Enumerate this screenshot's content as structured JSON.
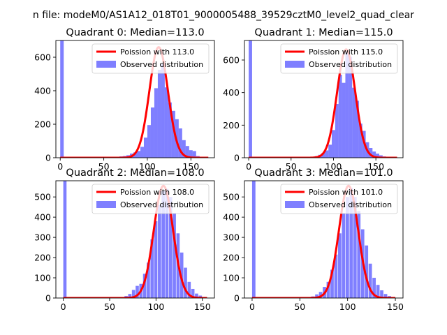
{
  "figure_title": "n file: modeM0/AS1A12_018T01_9000005488_39529cztM0_level2_quad_clear",
  "colors": {
    "observed": "#0000ff",
    "poisson": "#ff0000",
    "background": "#ffffff",
    "axis": "#000000"
  },
  "chart_data": [
    {
      "type": "bar",
      "title": "Quadrant 0: Median=113.0",
      "xlim": [
        -5,
        177
      ],
      "ylim": [
        0,
        700
      ],
      "xticks": [
        0,
        50,
        100,
        150
      ],
      "yticks": [
        0,
        200,
        400,
        600
      ],
      "bin_width": 4,
      "legend_position": "top-right",
      "legend": [
        "Poission with 113.0",
        "Observed distribution"
      ],
      "bins": [
        {
          "x": 0,
          "y": 700
        },
        {
          "x": 12,
          "y": 2
        },
        {
          "x": 28,
          "y": 3
        },
        {
          "x": 48,
          "y": 2
        },
        {
          "x": 60,
          "y": 4
        },
        {
          "x": 68,
          "y": 8
        },
        {
          "x": 72,
          "y": 10
        },
        {
          "x": 76,
          "y": 15
        },
        {
          "x": 80,
          "y": 25
        },
        {
          "x": 84,
          "y": 32
        },
        {
          "x": 88,
          "y": 40
        },
        {
          "x": 92,
          "y": 65
        },
        {
          "x": 96,
          "y": 120
        },
        {
          "x": 100,
          "y": 195
        },
        {
          "x": 104,
          "y": 300
        },
        {
          "x": 108,
          "y": 415
        },
        {
          "x": 112,
          "y": 525
        },
        {
          "x": 116,
          "y": 560
        },
        {
          "x": 120,
          "y": 420
        },
        {
          "x": 124,
          "y": 330
        },
        {
          "x": 128,
          "y": 280
        },
        {
          "x": 132,
          "y": 230
        },
        {
          "x": 136,
          "y": 175
        },
        {
          "x": 140,
          "y": 105
        },
        {
          "x": 144,
          "y": 70
        },
        {
          "x": 148,
          "y": 45
        },
        {
          "x": 152,
          "y": 40
        },
        {
          "x": 156,
          "y": 10
        },
        {
          "x": 160,
          "y": 5
        },
        {
          "x": 164,
          "y": 3
        }
      ],
      "poisson": {
        "name": "Poission with 113.0",
        "mean": 113.0,
        "peak": 660,
        "x_range": [
          0,
          170
        ]
      }
    },
    {
      "type": "bar",
      "title": "Quadrant 1: Median=115.0",
      "xlim": [
        -5,
        182
      ],
      "ylim": [
        0,
        720
      ],
      "xticks": [
        0,
        50,
        100,
        150
      ],
      "yticks": [
        0,
        200,
        400,
        600
      ],
      "bin_width": 4,
      "legend_position": "top-right",
      "legend": [
        "Poission with 115.0",
        "Observed distribution"
      ],
      "bins": [
        {
          "x": 0,
          "y": 720
        },
        {
          "x": 70,
          "y": 4
        },
        {
          "x": 74,
          "y": 6
        },
        {
          "x": 78,
          "y": 10
        },
        {
          "x": 82,
          "y": 18
        },
        {
          "x": 86,
          "y": 30
        },
        {
          "x": 90,
          "y": 45
        },
        {
          "x": 94,
          "y": 80
        },
        {
          "x": 98,
          "y": 170
        },
        {
          "x": 102,
          "y": 330
        },
        {
          "x": 106,
          "y": 510
        },
        {
          "x": 110,
          "y": 460
        },
        {
          "x": 114,
          "y": 650
        },
        {
          "x": 118,
          "y": 620
        },
        {
          "x": 122,
          "y": 430
        },
        {
          "x": 126,
          "y": 350
        },
        {
          "x": 130,
          "y": 210
        },
        {
          "x": 134,
          "y": 165
        },
        {
          "x": 138,
          "y": 95
        },
        {
          "x": 142,
          "y": 60
        },
        {
          "x": 146,
          "y": 38
        },
        {
          "x": 150,
          "y": 25
        },
        {
          "x": 154,
          "y": 15
        },
        {
          "x": 158,
          "y": 8
        },
        {
          "x": 162,
          "y": 4
        }
      ],
      "poisson": {
        "name": "Poission with 115.0",
        "mean": 115.0,
        "peak": 665,
        "x_range": [
          0,
          175
        ]
      }
    },
    {
      "type": "bar",
      "title": "Quadrant 2: Median=108.0",
      "xlim": [
        -8,
        163
      ],
      "ylim": [
        0,
        580
      ],
      "xticks": [
        0,
        50,
        100,
        150
      ],
      "yticks": [
        0,
        100,
        200,
        300,
        400,
        500
      ],
      "bin_width": 3.5,
      "legend_position": "top-right",
      "legend": [
        "Poission with 108.0",
        "Observed distribution"
      ],
      "bins": [
        {
          "x": 0,
          "y": 580
        },
        {
          "x": 62,
          "y": 3
        },
        {
          "x": 66,
          "y": 10
        },
        {
          "x": 70,
          "y": 20
        },
        {
          "x": 74,
          "y": 40
        },
        {
          "x": 78,
          "y": 60
        },
        {
          "x": 82,
          "y": 70
        },
        {
          "x": 86,
          "y": 120
        },
        {
          "x": 90,
          "y": 175
        },
        {
          "x": 94,
          "y": 290
        },
        {
          "x": 98,
          "y": 380
        },
        {
          "x": 102,
          "y": 460
        },
        {
          "x": 106,
          "y": 530
        },
        {
          "x": 110,
          "y": 540
        },
        {
          "x": 114,
          "y": 500
        },
        {
          "x": 118,
          "y": 420
        },
        {
          "x": 122,
          "y": 320
        },
        {
          "x": 126,
          "y": 225
        },
        {
          "x": 130,
          "y": 150
        },
        {
          "x": 134,
          "y": 80
        },
        {
          "x": 138,
          "y": 45
        },
        {
          "x": 142,
          "y": 22
        },
        {
          "x": 146,
          "y": 12
        },
        {
          "x": 150,
          "y": 5
        }
      ],
      "poisson": {
        "name": "Poission with 108.0",
        "mean": 108.0,
        "peak": 555,
        "x_range": [
          0,
          155
        ]
      }
    },
    {
      "type": "bar",
      "title": "Quadrant 3: Median=101.0",
      "xlim": [
        -8,
        158
      ],
      "ylim": [
        0,
        580
      ],
      "xticks": [
        0,
        50,
        100,
        150
      ],
      "yticks": [
        0,
        100,
        200,
        300,
        400,
        500
      ],
      "bin_width": 3.5,
      "legend_position": "top-right",
      "legend": [
        "Poission with 101.0",
        "Observed distribution"
      ],
      "bins": [
        {
          "x": 0,
          "y": 580
        },
        {
          "x": 58,
          "y": 3
        },
        {
          "x": 62,
          "y": 8
        },
        {
          "x": 66,
          "y": 18
        },
        {
          "x": 70,
          "y": 30
        },
        {
          "x": 74,
          "y": 55
        },
        {
          "x": 78,
          "y": 80
        },
        {
          "x": 82,
          "y": 140
        },
        {
          "x": 86,
          "y": 215
        },
        {
          "x": 90,
          "y": 320
        },
        {
          "x": 94,
          "y": 420
        },
        {
          "x": 98,
          "y": 500
        },
        {
          "x": 102,
          "y": 545
        },
        {
          "x": 106,
          "y": 500
        },
        {
          "x": 110,
          "y": 430
        },
        {
          "x": 114,
          "y": 340
        },
        {
          "x": 118,
          "y": 260
        },
        {
          "x": 122,
          "y": 170
        },
        {
          "x": 126,
          "y": 100
        },
        {
          "x": 130,
          "y": 65
        },
        {
          "x": 134,
          "y": 38
        },
        {
          "x": 138,
          "y": 20
        },
        {
          "x": 142,
          "y": 10
        },
        {
          "x": 146,
          "y": 4
        }
      ],
      "poisson": {
        "name": "Poission with 101.0",
        "mean": 101.0,
        "peak": 555,
        "x_range": [
          0,
          150
        ]
      }
    }
  ]
}
